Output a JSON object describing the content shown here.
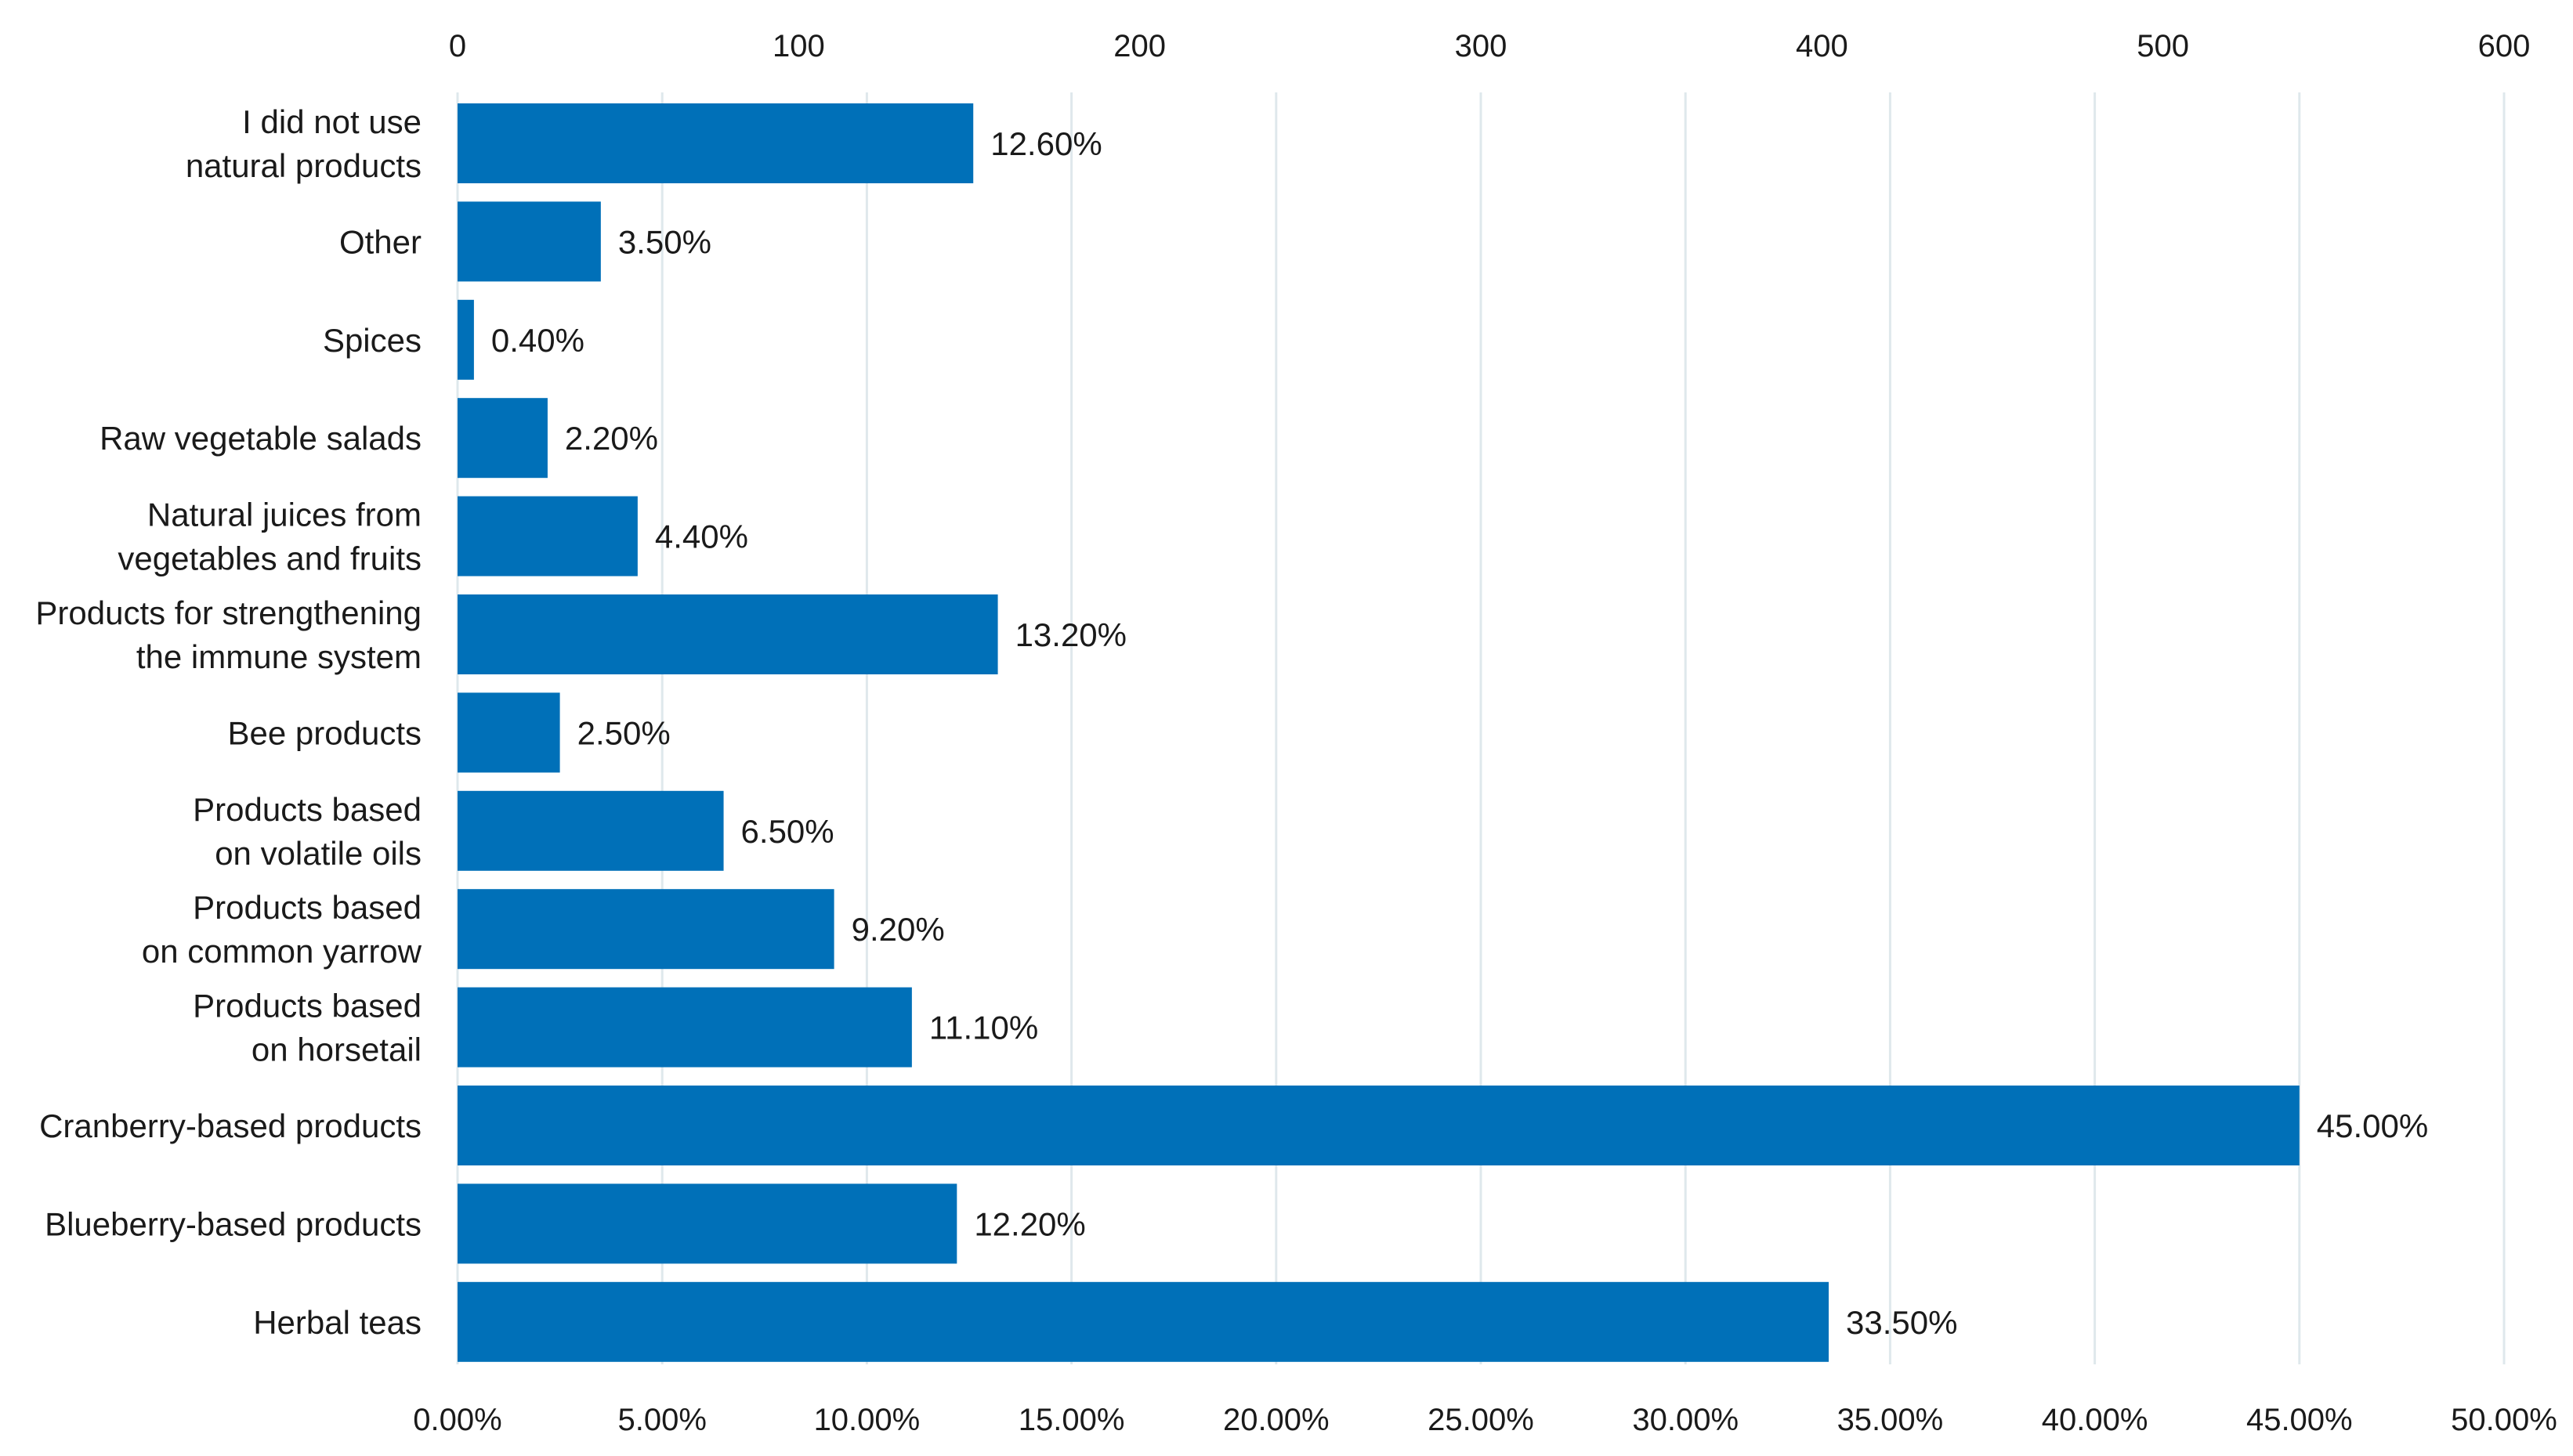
{
  "chart_data": {
    "type": "bar",
    "orientation": "horizontal",
    "title": "",
    "xlabel": "",
    "ylabel": "",
    "categories": [
      "I did not use natural products",
      "Other",
      "Spices",
      "Raw vegetable salads",
      "Natural juices from vegetables and fruits",
      "Products for strengthening the immune system",
      "Bee products",
      "Products based on volatile oils",
      "Products based on common yarrow",
      "Products based on horsetail",
      "Cranberry-based products",
      "Blueberry-based products",
      "Herbal teas"
    ],
    "category_lines": [
      [
        "I did not use",
        "natural products"
      ],
      [
        "Other"
      ],
      [
        "Spices"
      ],
      [
        "Raw vegetable salads"
      ],
      [
        "Natural juices from",
        "vegetables and fruits"
      ],
      [
        "Products for strengthening",
        "the immune system"
      ],
      [
        "Bee products"
      ],
      [
        "Products based",
        "on volatile oils"
      ],
      [
        "Products based",
        "on common yarrow"
      ],
      [
        "Products based",
        "on horsetail"
      ],
      [
        "Cranberry-based products"
      ],
      [
        "Blueberry-based products"
      ],
      [
        "Herbal teas"
      ]
    ],
    "values": [
      12.6,
      3.5,
      0.4,
      2.2,
      4.4,
      13.2,
      2.5,
      6.5,
      9.2,
      11.1,
      45.0,
      12.2,
      33.5
    ],
    "data_labels": [
      "12.60%",
      "3.50%",
      "0.40%",
      "2.20%",
      "4.40%",
      "13.20%",
      "2.50%",
      "6.50%",
      "9.20%",
      "11.10%",
      "45.00%",
      "12.20%",
      "33.50%"
    ],
    "bottom_axis": {
      "range": [
        0,
        50
      ],
      "ticks": [
        0,
        5,
        10,
        15,
        20,
        25,
        30,
        35,
        40,
        45,
        50
      ],
      "tick_labels": [
        "0.00%",
        "5.00%",
        "10.00%",
        "15.00%",
        "20.00%",
        "25.00%",
        "30.00%",
        "35.00%",
        "40.00%",
        "45.00%",
        "50.00%"
      ]
    },
    "top_axis": {
      "range": [
        0,
        600
      ],
      "ticks": [
        0,
        100,
        200,
        300,
        400,
        500,
        600
      ],
      "tick_labels": [
        "0",
        "100",
        "200",
        "300",
        "400",
        "500",
        "600"
      ]
    },
    "grid": true,
    "legend": "none",
    "colors": {
      "bar": "#0070b8",
      "grid": "#dfe8ec",
      "text": "#1a1a1a"
    }
  }
}
